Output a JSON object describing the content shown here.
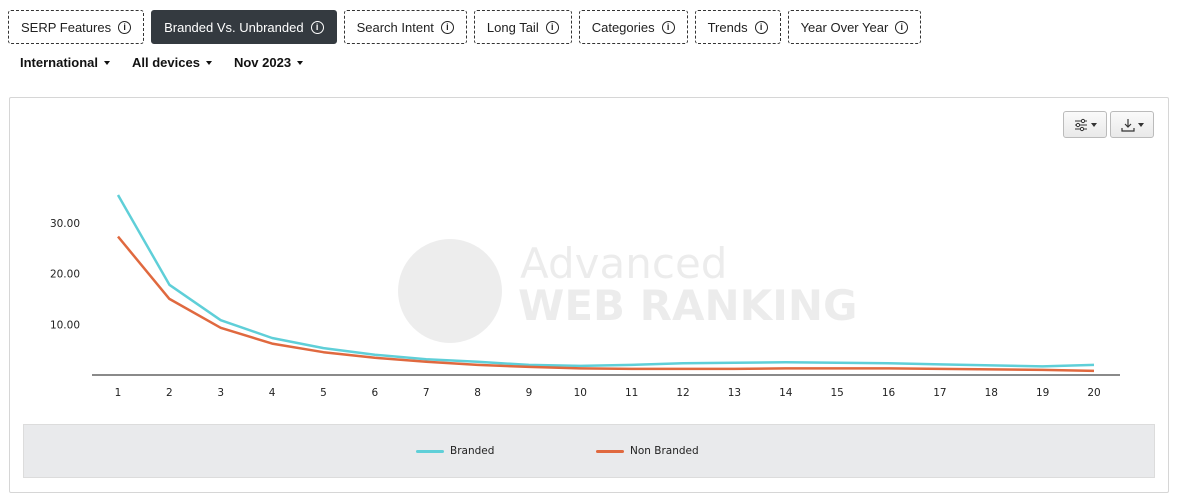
{
  "tabs": [
    {
      "label": "SERP Features",
      "active": false
    },
    {
      "label": "Branded Vs. Unbranded",
      "active": true
    },
    {
      "label": "Search Intent",
      "active": false
    },
    {
      "label": "Long Tail",
      "active": false
    },
    {
      "label": "Categories",
      "active": false
    },
    {
      "label": "Trends",
      "active": false
    },
    {
      "label": "Year Over Year",
      "active": false
    }
  ],
  "filters": {
    "region": "International",
    "device": "All devices",
    "date": "Nov 2023"
  },
  "watermark": {
    "line1": "Advanced",
    "line2": "WEB RANKING"
  },
  "colors": {
    "branded": "#5fcfd8",
    "non_branded": "#e0693f"
  },
  "chart_data": {
    "type": "line",
    "title": "",
    "xlabel": "",
    "ylabel": "",
    "x": [
      1,
      2,
      3,
      4,
      5,
      6,
      7,
      8,
      9,
      10,
      11,
      12,
      13,
      14,
      15,
      16,
      17,
      18,
      19,
      20
    ],
    "ylim": [
      0,
      36
    ],
    "y_ticks": [
      "10.00",
      "20.00",
      "30.00"
    ],
    "y_tick_values": [
      10,
      20,
      30
    ],
    "grid": false,
    "legend_position": "bottom",
    "series": [
      {
        "name": "Branded",
        "values": [
          35.5,
          17.8,
          10.8,
          7.3,
          5.3,
          4.0,
          3.1,
          2.6,
          2.0,
          1.8,
          2.0,
          2.3,
          2.4,
          2.5,
          2.4,
          2.3,
          2.1,
          1.9,
          1.7,
          2.0
        ]
      },
      {
        "name": "Non Branded",
        "values": [
          27.3,
          15.0,
          9.3,
          6.2,
          4.5,
          3.4,
          2.6,
          2.0,
          1.6,
          1.3,
          1.2,
          1.2,
          1.2,
          1.3,
          1.3,
          1.3,
          1.2,
          1.1,
          1.0,
          0.8
        ]
      }
    ]
  }
}
